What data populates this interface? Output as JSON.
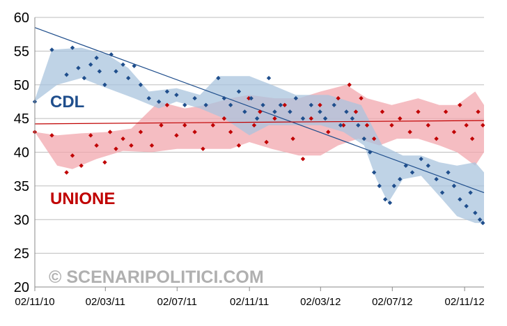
{
  "chart_data": {
    "type": "scatter",
    "title": "",
    "xlabel": "",
    "ylabel": "",
    "ylim": [
      20,
      60
    ],
    "yticks": [
      20,
      25,
      30,
      35,
      40,
      45,
      50,
      55,
      60
    ],
    "xlim": [
      "2010-11-02",
      "2012-12-05"
    ],
    "xticks": [
      "02/11/10",
      "02/03/11",
      "02/07/11",
      "02/11/11",
      "02/03/12",
      "02/07/12",
      "02/11/12"
    ],
    "xtick_dates": [
      "2010-11-02",
      "2011-03-02",
      "2011-07-02",
      "2011-11-02",
      "2012-03-02",
      "2012-07-02",
      "2012-11-02"
    ],
    "grid": true,
    "annotations": [
      {
        "text": "CDL",
        "color": "#1f4e8c"
      },
      {
        "text": "UNIONE",
        "color": "#c00000"
      },
      {
        "text": "© SCENARIPOLITICI.COM",
        "color": "#b0b0b0"
      }
    ],
    "series": [
      {
        "name": "CDL",
        "color": "#1f4e8c",
        "band_color": "#a9c4de",
        "trend": {
          "start": [
            "2010-11-02",
            58.5
          ],
          "end": [
            "2012-12-05",
            34
          ]
        },
        "band_upper": [
          [
            "2010-11-02",
            47.8
          ],
          [
            "2010-12-01",
            55.2
          ],
          [
            "2011-01-20",
            55.5
          ],
          [
            "2011-03-05",
            54.5
          ],
          [
            "2011-04-10",
            52.5
          ],
          [
            "2011-05-15",
            49
          ],
          [
            "2011-07-01",
            49.5
          ],
          [
            "2011-08-10",
            48.5
          ],
          [
            "2011-09-10",
            51.3
          ],
          [
            "2011-11-02",
            51.3
          ],
          [
            "2011-12-10",
            50
          ],
          [
            "2012-01-20",
            48.5
          ],
          [
            "2012-03-15",
            48.5
          ],
          [
            "2012-05-10",
            47
          ],
          [
            "2012-06-15",
            41
          ],
          [
            "2012-07-20",
            39.5
          ],
          [
            "2012-08-20",
            39.5
          ],
          [
            "2012-09-20",
            38.5
          ],
          [
            "2012-10-20",
            38
          ],
          [
            "2012-11-20",
            38.5
          ],
          [
            "2012-12-05",
            37
          ]
        ],
        "band_lower": [
          [
            "2012-12-05",
            29.5
          ],
          [
            "2012-11-20",
            29.5
          ],
          [
            "2012-10-20",
            30.5
          ],
          [
            "2012-09-25",
            33
          ],
          [
            "2012-08-20",
            36.5
          ],
          [
            "2012-07-20",
            36
          ],
          [
            "2012-06-25",
            32.5
          ],
          [
            "2012-06-05",
            36
          ],
          [
            "2012-05-15",
            41
          ],
          [
            "2012-04-10",
            43
          ],
          [
            "2012-03-02",
            44
          ],
          [
            "2012-01-15",
            44
          ],
          [
            "2011-12-05",
            44
          ],
          [
            "2011-11-02",
            42.5
          ],
          [
            "2011-09-20",
            45
          ],
          [
            "2011-08-10",
            46.5
          ],
          [
            "2011-07-01",
            47.5
          ],
          [
            "2011-06-01",
            46.5
          ],
          [
            "2011-04-20",
            48
          ],
          [
            "2011-03-05",
            49.5
          ],
          [
            "2011-01-20",
            51
          ],
          [
            "2010-12-10",
            50
          ],
          [
            "2010-11-02",
            47.5
          ]
        ],
        "points": [
          [
            "2010-11-02",
            47.5
          ],
          [
            "2010-12-01",
            55.2
          ],
          [
            "2010-12-26",
            51.5
          ],
          [
            "2011-01-05",
            55.5
          ],
          [
            "2011-01-15",
            52.5
          ],
          [
            "2011-01-25",
            51
          ],
          [
            "2011-02-05",
            53
          ],
          [
            "2011-02-15",
            54
          ],
          [
            "2011-02-20",
            52
          ],
          [
            "2011-03-01",
            50
          ],
          [
            "2011-03-12",
            54.5
          ],
          [
            "2011-03-20",
            52
          ],
          [
            "2011-04-01",
            53
          ],
          [
            "2011-04-10",
            51
          ],
          [
            "2011-04-20",
            52.8
          ],
          [
            "2011-05-01",
            50
          ],
          [
            "2011-05-15",
            48
          ],
          [
            "2011-06-01",
            47.5
          ],
          [
            "2011-06-15",
            49
          ],
          [
            "2011-07-01",
            48.5
          ],
          [
            "2011-07-15",
            47
          ],
          [
            "2011-08-01",
            48
          ],
          [
            "2011-08-20",
            47
          ],
          [
            "2011-09-10",
            51
          ],
          [
            "2011-09-20",
            48
          ],
          [
            "2011-10-01",
            47
          ],
          [
            "2011-10-15",
            49
          ],
          [
            "2011-10-25",
            46
          ],
          [
            "2011-11-05",
            48
          ],
          [
            "2011-11-15",
            45
          ],
          [
            "2011-11-25",
            47
          ],
          [
            "2011-12-05",
            51
          ],
          [
            "2011-12-15",
            46
          ],
          [
            "2011-12-25",
            47
          ],
          [
            "2012-01-10",
            46
          ],
          [
            "2012-01-20",
            48
          ],
          [
            "2012-02-01",
            45
          ],
          [
            "2012-02-15",
            47
          ],
          [
            "2012-03-01",
            46
          ],
          [
            "2012-03-10",
            45
          ],
          [
            "2012-03-25",
            47
          ],
          [
            "2012-04-05",
            44
          ],
          [
            "2012-04-15",
            46
          ],
          [
            "2012-04-25",
            45
          ],
          [
            "2012-05-05",
            44
          ],
          [
            "2012-05-15",
            42
          ],
          [
            "2012-05-25",
            40
          ],
          [
            "2012-06-01",
            37
          ],
          [
            "2012-06-10",
            35
          ],
          [
            "2012-06-20",
            33
          ],
          [
            "2012-06-28",
            32.5
          ],
          [
            "2012-07-05",
            35
          ],
          [
            "2012-07-15",
            36
          ],
          [
            "2012-07-25",
            38
          ],
          [
            "2012-08-05",
            37
          ],
          [
            "2012-08-20",
            39
          ],
          [
            "2012-09-01",
            38
          ],
          [
            "2012-09-15",
            36
          ],
          [
            "2012-09-25",
            34
          ],
          [
            "2012-10-05",
            37
          ],
          [
            "2012-10-15",
            35
          ],
          [
            "2012-10-25",
            33
          ],
          [
            "2012-11-05",
            32
          ],
          [
            "2012-11-12",
            34
          ],
          [
            "2012-11-20",
            31
          ],
          [
            "2012-11-28",
            30
          ],
          [
            "2012-12-03",
            29.5
          ]
        ]
      },
      {
        "name": "UNIONE",
        "color": "#c00000",
        "band_color": "#f2a7ae",
        "trend": {
          "start": [
            "2010-11-02",
            44.2
          ],
          "end": [
            "2012-12-05",
            44.7
          ]
        },
        "band_upper": [
          [
            "2010-11-02",
            43
          ],
          [
            "2010-12-10",
            42.5
          ],
          [
            "2011-01-20",
            42.8
          ],
          [
            "2011-03-05",
            43
          ],
          [
            "2011-04-15",
            43.5
          ],
          [
            "2011-06-01",
            47.5
          ],
          [
            "2011-07-15",
            46.5
          ],
          [
            "2011-08-20",
            47
          ],
          [
            "2011-10-01",
            48
          ],
          [
            "2011-11-02",
            48.5
          ],
          [
            "2011-12-15",
            48
          ],
          [
            "2012-01-25",
            48
          ],
          [
            "2012-03-02",
            49
          ],
          [
            "2012-04-15",
            50
          ],
          [
            "2012-05-20",
            48
          ],
          [
            "2012-07-01",
            47
          ],
          [
            "2012-08-15",
            48
          ],
          [
            "2012-09-20",
            47
          ],
          [
            "2012-10-20",
            47
          ],
          [
            "2012-11-20",
            49
          ],
          [
            "2012-12-05",
            47
          ]
        ],
        "band_lower": [
          [
            "2012-12-05",
            40
          ],
          [
            "2012-11-20",
            38
          ],
          [
            "2012-10-20",
            40
          ],
          [
            "2012-09-20",
            41
          ],
          [
            "2012-08-15",
            42
          ],
          [
            "2012-07-10",
            42
          ],
          [
            "2012-06-10",
            41
          ],
          [
            "2012-05-05",
            42
          ],
          [
            "2012-04-01",
            41
          ],
          [
            "2012-03-02",
            39.5
          ],
          [
            "2012-01-25",
            39.5
          ],
          [
            "2011-12-10",
            40.5
          ],
          [
            "2011-11-02",
            41.5
          ],
          [
            "2011-10-01",
            40.5
          ],
          [
            "2011-08-15",
            40.5
          ],
          [
            "2011-07-02",
            40.5
          ],
          [
            "2011-05-20",
            40
          ],
          [
            "2011-04-01",
            40.2
          ],
          [
            "2011-02-15",
            39
          ],
          [
            "2011-01-05",
            37.5
          ],
          [
            "2010-12-10",
            38
          ],
          [
            "2010-11-02",
            43
          ]
        ],
        "points": [
          [
            "2010-11-02",
            43
          ],
          [
            "2010-12-01",
            42.5
          ],
          [
            "2010-12-26",
            37
          ],
          [
            "2011-01-05",
            39.5
          ],
          [
            "2011-01-20",
            38
          ],
          [
            "2011-02-05",
            42.5
          ],
          [
            "2011-02-15",
            41
          ],
          [
            "2011-03-01",
            38.5
          ],
          [
            "2011-03-10",
            43
          ],
          [
            "2011-03-20",
            40.5
          ],
          [
            "2011-04-01",
            42
          ],
          [
            "2011-04-15",
            41
          ],
          [
            "2011-05-01",
            43
          ],
          [
            "2011-05-20",
            41
          ],
          [
            "2011-06-05",
            44
          ],
          [
            "2011-06-15",
            47
          ],
          [
            "2011-07-01",
            42.5
          ],
          [
            "2011-07-15",
            44
          ],
          [
            "2011-08-01",
            43
          ],
          [
            "2011-08-15",
            40.5
          ],
          [
            "2011-09-01",
            44
          ],
          [
            "2011-09-20",
            45
          ],
          [
            "2011-10-01",
            43
          ],
          [
            "2011-10-15",
            41
          ],
          [
            "2011-11-01",
            48
          ],
          [
            "2011-11-10",
            44
          ],
          [
            "2011-11-20",
            46
          ],
          [
            "2011-12-01",
            41.5
          ],
          [
            "2011-12-15",
            45
          ],
          [
            "2012-01-01",
            47
          ],
          [
            "2012-01-15",
            42
          ],
          [
            "2012-02-01",
            39
          ],
          [
            "2012-02-15",
            45
          ],
          [
            "2012-03-01",
            47
          ],
          [
            "2012-03-15",
            43
          ],
          [
            "2012-04-01",
            48
          ],
          [
            "2012-04-10",
            44
          ],
          [
            "2012-04-20",
            50
          ],
          [
            "2012-05-01",
            46
          ],
          [
            "2012-05-10",
            48
          ],
          [
            "2012-05-20",
            44
          ],
          [
            "2012-06-01",
            42
          ],
          [
            "2012-06-15",
            46
          ],
          [
            "2012-07-01",
            44
          ],
          [
            "2012-07-15",
            45
          ],
          [
            "2012-08-01",
            43
          ],
          [
            "2012-08-15",
            46
          ],
          [
            "2012-09-01",
            44
          ],
          [
            "2012-09-15",
            42
          ],
          [
            "2012-10-01",
            46
          ],
          [
            "2012-10-15",
            43
          ],
          [
            "2012-10-25",
            47
          ],
          [
            "2012-11-05",
            44
          ],
          [
            "2012-11-15",
            42
          ],
          [
            "2012-11-25",
            46
          ],
          [
            "2012-12-03",
            44
          ]
        ]
      }
    ]
  }
}
